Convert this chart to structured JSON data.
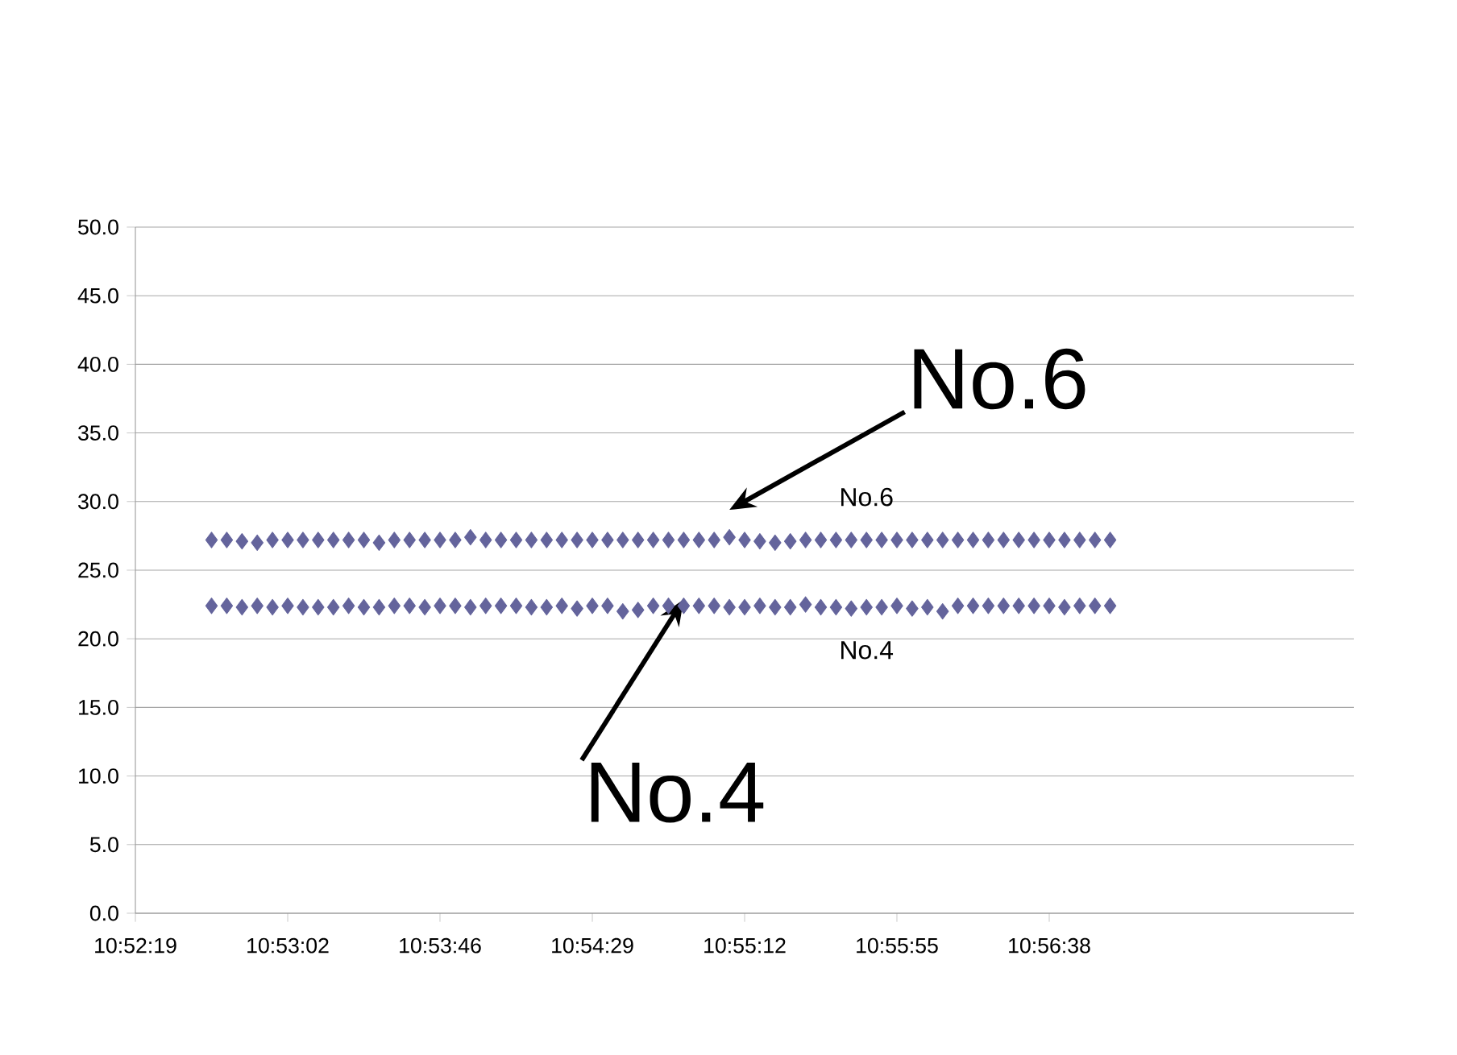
{
  "chart_data": {
    "type": "scatter",
    "x": [
      10.878,
      10.8792,
      10.8804,
      10.8816,
      10.8828,
      10.884,
      10.8852,
      10.8864,
      10.8876,
      10.8888,
      10.89,
      10.8912,
      10.8924,
      10.8936,
      10.8948,
      10.896,
      10.8972,
      10.8984,
      10.8996,
      10.9008,
      10.902,
      10.9032,
      10.9044,
      10.9056,
      10.9068,
      10.908,
      10.9092,
      10.9104,
      10.9116,
      10.9128,
      10.914,
      10.9152,
      10.9164,
      10.9176,
      10.9188,
      10.92,
      10.9212,
      10.9224,
      10.9236,
      10.9248,
      10.926,
      10.9272,
      10.9284,
      10.9296,
      10.9308,
      10.932,
      10.9332,
      10.9344,
      10.9356,
      10.9368,
      10.938,
      10.9392,
      10.9404,
      10.9416,
      10.9428,
      10.944,
      10.9452,
      10.9464,
      10.9476,
      10.9488
    ],
    "series": [
      {
        "name": "No.6",
        "color": "#64649c",
        "values": [
          27.2,
          27.2,
          27.1,
          27.0,
          27.2,
          27.2,
          27.2,
          27.2,
          27.2,
          27.2,
          27.2,
          27.0,
          27.2,
          27.2,
          27.2,
          27.2,
          27.2,
          27.4,
          27.2,
          27.2,
          27.2,
          27.2,
          27.2,
          27.2,
          27.2,
          27.2,
          27.2,
          27.2,
          27.2,
          27.2,
          27.2,
          27.2,
          27.2,
          27.2,
          27.4,
          27.2,
          27.1,
          27.0,
          27.1,
          27.2,
          27.2,
          27.2,
          27.2,
          27.2,
          27.2,
          27.2,
          27.2,
          27.2,
          27.2,
          27.2,
          27.2,
          27.2,
          27.2,
          27.2,
          27.2,
          27.2,
          27.2,
          27.2,
          27.2,
          27.2
        ]
      },
      {
        "name": "No.4",
        "color": "#64649c",
        "values": [
          22.4,
          22.4,
          22.3,
          22.4,
          22.3,
          22.4,
          22.3,
          22.3,
          22.3,
          22.4,
          22.3,
          22.3,
          22.4,
          22.4,
          22.3,
          22.4,
          22.4,
          22.3,
          22.4,
          22.4,
          22.4,
          22.3,
          22.3,
          22.4,
          22.2,
          22.4,
          22.4,
          22.0,
          22.1,
          22.4,
          22.4,
          22.4,
          22.4,
          22.4,
          22.3,
          22.3,
          22.4,
          22.3,
          22.3,
          22.5,
          22.3,
          22.3,
          22.2,
          22.3,
          22.3,
          22.4,
          22.2,
          22.3,
          22.0,
          22.4,
          22.4,
          22.4,
          22.4,
          22.4,
          22.4,
          22.4,
          22.3,
          22.4,
          22.4,
          22.4
        ]
      }
    ],
    "xlim": [
      10.872,
      10.968
    ],
    "xticks": [
      {
        "value": 10.872,
        "label": "10:52:19"
      },
      {
        "value": 10.884,
        "label": "10:53:02"
      },
      {
        "value": 10.896,
        "label": "10:53:46"
      },
      {
        "value": 10.908,
        "label": "10:54:29"
      },
      {
        "value": 10.92,
        "label": "10:55:12"
      },
      {
        "value": 10.932,
        "label": "10:55:55"
      },
      {
        "value": 10.944,
        "label": "10:56:38"
      }
    ],
    "ylim": [
      0,
      50
    ],
    "yticks": [
      {
        "value": 0,
        "label": "0.0"
      },
      {
        "value": 5,
        "label": "5.0"
      },
      {
        "value": 10,
        "label": "10.0"
      },
      {
        "value": 15,
        "label": "15.0"
      },
      {
        "value": 20,
        "label": "20.0"
      },
      {
        "value": 25,
        "label": "25.0"
      },
      {
        "value": 30,
        "label": "30.0"
      },
      {
        "value": 35,
        "label": "35.0"
      },
      {
        "value": 40,
        "label": "40.0"
      },
      {
        "value": 45,
        "label": "45.0"
      },
      {
        "value": 50,
        "label": "50.0"
      }
    ],
    "grid": "y",
    "marker": "diamond",
    "annotations": [
      {
        "text": "No.6",
        "x": 10.9188,
        "y": 27.2
      },
      {
        "text": "No.4",
        "x": 10.9152,
        "y": 22.4
      }
    ]
  }
}
